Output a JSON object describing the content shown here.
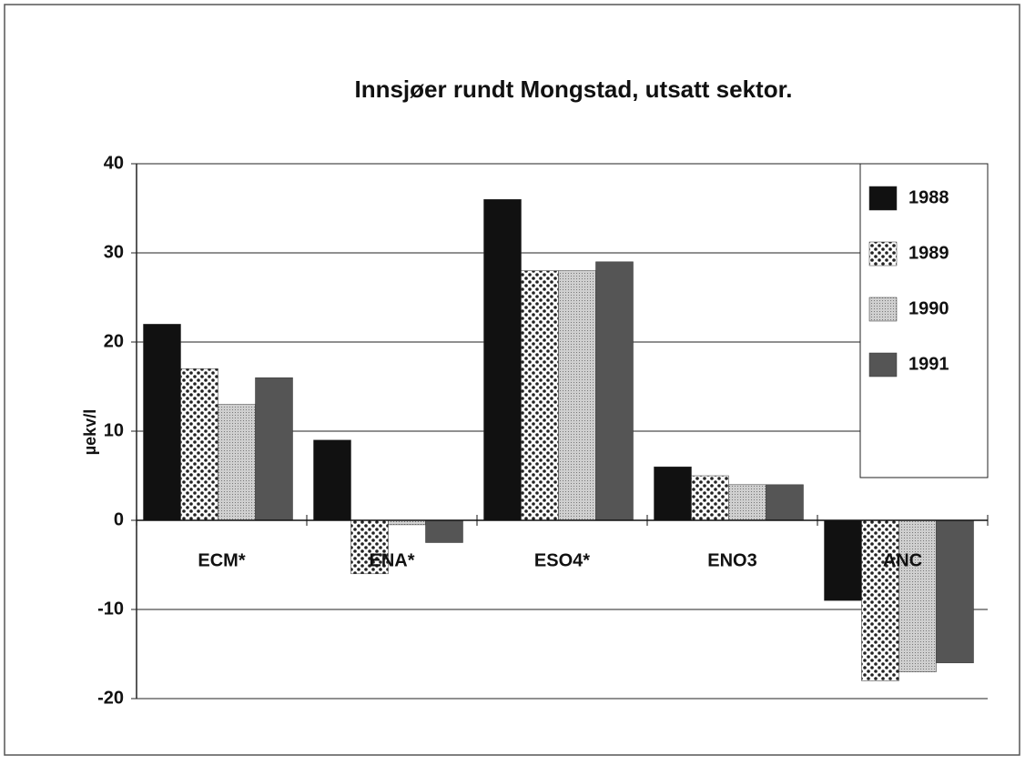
{
  "chart_data": {
    "type": "bar",
    "title": "Innsjøer rundt Mongstad, utsatt sektor.",
    "y_label": "µekv/l",
    "categories": [
      "ECM*",
      "ENA*",
      "ESO4*",
      "ENO3",
      "ANC"
    ],
    "series": [
      {
        "name": "1988",
        "color": "#111111",
        "values": [
          22,
          9,
          36,
          6,
          -9
        ]
      },
      {
        "name": "1989",
        "color": "#ffffff",
        "pattern": "dots",
        "values": [
          17,
          -6,
          28,
          5,
          -18
        ]
      },
      {
        "name": "1990",
        "color": "#c8c8c8",
        "pattern": "fine",
        "values": [
          13,
          -0.5,
          28,
          4,
          -17
        ]
      },
      {
        "name": "1991",
        "color": "#555555",
        "values": [
          16,
          -2.5,
          29,
          4,
          -16
        ]
      }
    ],
    "ylim": [
      -20,
      40
    ],
    "yticks": [
      -20,
      -10,
      0,
      10,
      20,
      30,
      40
    ],
    "grid": true,
    "legend": "upper right"
  }
}
